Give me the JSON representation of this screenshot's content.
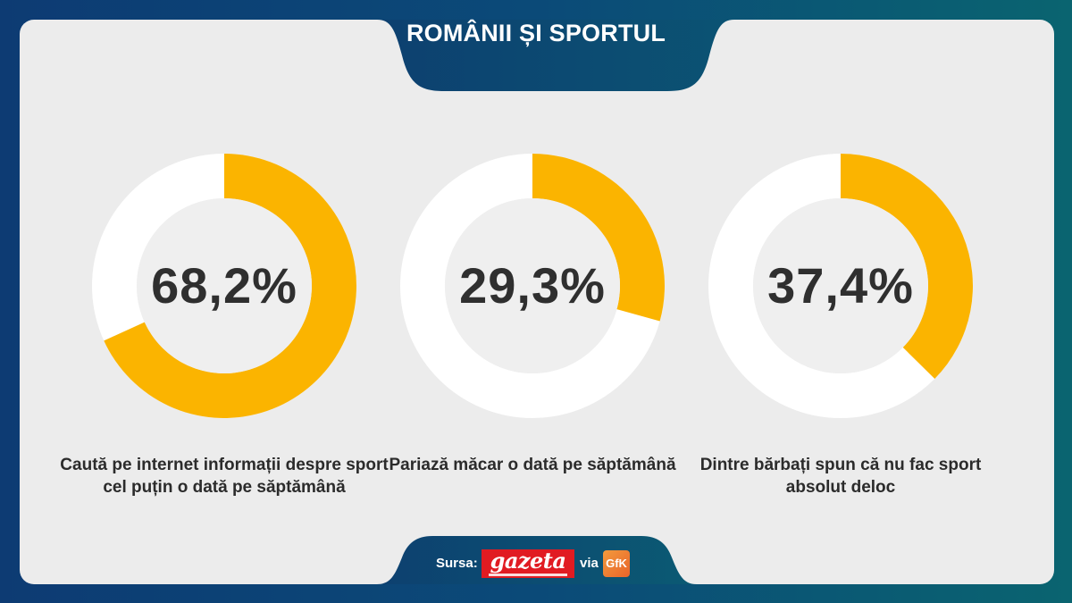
{
  "title": "ROMÂNII ȘI SPORTUL",
  "colors": {
    "accent": "#fbb400",
    "ring_rest": "#ffffff",
    "inner": "#efefef",
    "panel": "#ececec",
    "header": "#0d3b73"
  },
  "chart_data": [
    {
      "type": "pie",
      "value_label": "68,2%",
      "values": [
        68.2,
        31.8
      ],
      "caption": "Caută pe internet informații despre sport cel puțin o dată pe săptămână"
    },
    {
      "type": "pie",
      "value_label": "29,3%",
      "values": [
        29.3,
        70.7
      ],
      "caption": "Pariază măcar o dată pe săptămână"
    },
    {
      "type": "pie",
      "value_label": "37,4%",
      "values": [
        37.4,
        62.6
      ],
      "caption": "Dintre bărbați spun că nu fac sport absolut deloc"
    }
  ],
  "source": {
    "label": "Sursa:",
    "publisher_logo": "gazeta",
    "via": "via",
    "partner_logo": "GfK"
  }
}
